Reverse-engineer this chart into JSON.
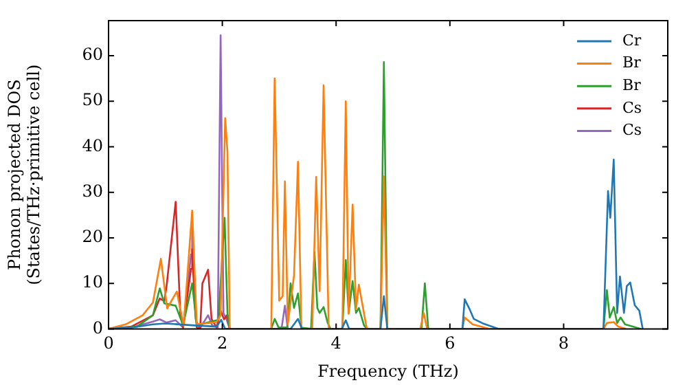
{
  "chart_data": {
    "type": "line",
    "xlabel": "Frequency (THz)",
    "ylabel": "Phonon projected DOS\n(States/THz·primitive cell)",
    "xlim": [
      0,
      9.83
    ],
    "ylim": [
      0,
      67.7
    ],
    "xticks": [
      0,
      2,
      4,
      6,
      8
    ],
    "yticks": [
      0,
      10,
      20,
      30,
      40,
      50,
      60
    ],
    "legend": "top right",
    "grid": false,
    "marker": "none",
    "line_style": "solid",
    "series": [
      {
        "name": "Cr",
        "color": "#1f77b4",
        "x": [
          0,
          0.4,
          0.78,
          1.0,
          1.47,
          1.9,
          1.98,
          2.05,
          3.2,
          3.33,
          3.4,
          4.1,
          4.17,
          4.23,
          4.78,
          4.84,
          4.9,
          6.22,
          6.26,
          6.34,
          6.42,
          6.58,
          6.86,
          8.7,
          8.78,
          8.82,
          8.88,
          8.94,
          8.99,
          9.06,
          9.11,
          9.17,
          9.25,
          9.33,
          9.39
        ],
        "values": [
          0,
          0.3,
          1,
          1.2,
          0.8,
          0.5,
          2,
          0,
          0,
          2.2,
          0,
          0,
          1.9,
          0,
          0,
          7.2,
          0,
          0,
          6.5,
          4.5,
          2.2,
          1.2,
          0,
          0,
          30.3,
          24.4,
          37.2,
          3.5,
          11.5,
          3.5,
          9.4,
          10.2,
          5.2,
          4,
          0
        ]
      },
      {
        "name": "Br",
        "color": "#ff7f0e",
        "x": [
          0,
          0.3,
          0.6,
          0.78,
          0.92,
          1.03,
          1.2,
          1.32,
          1.47,
          1.55,
          1.9,
          1.97,
          2.05,
          2.09,
          2.13,
          2.86,
          2.92,
          3.0,
          3.06,
          3.1,
          3.15,
          3.26,
          3.33,
          3.39,
          3.58,
          3.65,
          3.71,
          3.78,
          3.87,
          4.11,
          4.17,
          4.22,
          4.29,
          4.35,
          4.4,
          4.46,
          4.54,
          4.78,
          4.84,
          4.9,
          5.48,
          5.54,
          5.6,
          6.22,
          6.26,
          6.4,
          6.7,
          8.7,
          8.76,
          8.88,
          8.96,
          9.1
        ],
        "values": [
          0,
          1,
          3,
          5.8,
          15.4,
          4.5,
          8.2,
          0.7,
          26,
          1,
          1.5,
          3,
          46.3,
          38.8,
          0,
          0,
          55,
          6.2,
          7.2,
          32.4,
          1,
          11.7,
          36.7,
          0,
          0,
          33.4,
          8.3,
          53.5,
          0,
          0,
          50,
          3.3,
          27.3,
          4.3,
          9.7,
          5.5,
          0,
          0,
          33.5,
          0,
          0,
          3.5,
          0,
          0,
          2.5,
          1,
          0,
          0,
          1.3,
          1.5,
          0.5,
          0
        ]
      },
      {
        "name": "Br",
        "color": "#2ca02c",
        "x": [
          0,
          0.5,
          0.78,
          0.9,
          0.98,
          1.18,
          1.31,
          1.47,
          1.55,
          1.93,
          2.04,
          2.09,
          2.13,
          2.86,
          2.92,
          2.99,
          3.14,
          3.2,
          3.26,
          3.33,
          3.39,
          3.56,
          3.62,
          3.67,
          3.71,
          3.78,
          3.85,
          3.9,
          4.11,
          4.17,
          4.22,
          4.29,
          4.35,
          4.4,
          4.49,
          4.54,
          4.78,
          4.84,
          4.9,
          5.5,
          5.56,
          5.62,
          8.7,
          8.76,
          8.81,
          8.88,
          8.94,
          9.0,
          9.08,
          9.36
        ],
        "values": [
          0,
          0.5,
          3,
          8.9,
          5.6,
          5.1,
          0.8,
          10,
          0.8,
          2,
          24.4,
          3.5,
          0,
          0,
          2.2,
          0.3,
          0.3,
          10,
          4.6,
          7.8,
          0.3,
          0,
          16.9,
          4.6,
          3.5,
          4.8,
          1.4,
          0,
          0,
          15.1,
          3.5,
          10.5,
          3.5,
          4.6,
          0.8,
          0,
          0,
          58.6,
          0,
          0,
          10,
          0,
          0,
          8.5,
          2.5,
          4.8,
          1.3,
          2.5,
          1,
          0
        ]
      },
      {
        "name": "Cs",
        "color": "#d62728",
        "x": [
          0,
          0.4,
          0.78,
          0.9,
          0.98,
          1.02,
          1.18,
          1.26,
          1.31,
          1.45,
          1.47,
          1.51,
          1.55,
          1.61,
          1.65,
          1.75,
          1.81,
          1.9,
          1.97,
          2.03,
          2.08,
          2.13
        ],
        "values": [
          0,
          0.5,
          3,
          6.7,
          6.1,
          9.4,
          27.9,
          3.5,
          0.3,
          13.2,
          17.5,
          6.7,
          0.3,
          0,
          10,
          13,
          2.2,
          0.3,
          4,
          2.1,
          3,
          0
        ]
      },
      {
        "name": "Cs",
        "color": "#9467bd",
        "x": [
          0,
          0.4,
          0.78,
          0.9,
          1.02,
          1.18,
          1.31,
          1.45,
          1.47,
          1.53,
          1.6,
          1.7,
          1.75,
          1.82,
          1.92,
          1.97,
          2.02,
          2.08,
          2.13,
          3.04,
          3.1,
          3.15
        ],
        "values": [
          0,
          0.3,
          1.6,
          2.1,
          1.4,
          1.9,
          0.3,
          16.4,
          22.8,
          2.2,
          0,
          2,
          3,
          0.8,
          0.3,
          64.5,
          3.5,
          1.9,
          0,
          0,
          5.1,
          0
        ]
      }
    ]
  }
}
